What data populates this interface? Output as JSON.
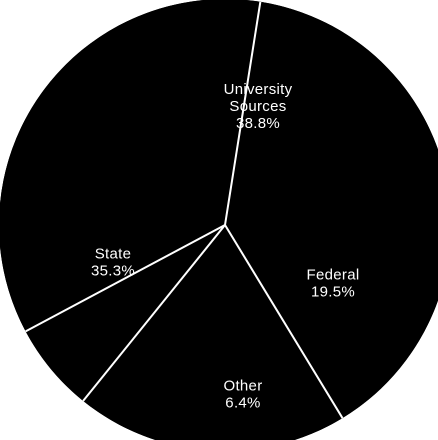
{
  "chart_data": {
    "type": "pie",
    "title": "",
    "slices": [
      {
        "lines": [
          "University",
          "Sources"
        ],
        "value_label": "38.8%",
        "value": 38.8
      },
      {
        "lines": [
          "Federal"
        ],
        "value_label": "19.5%",
        "value": 19.5
      },
      {
        "lines": [
          "Other"
        ],
        "value_label": "6.4%",
        "value": 6.4
      },
      {
        "lines": [
          "State"
        ],
        "value_label": "35.3%",
        "value": 35.3
      }
    ],
    "colors": {
      "fill": "#000000",
      "divider": "#ffffff",
      "label": "#ffffff"
    },
    "legend": "none"
  }
}
